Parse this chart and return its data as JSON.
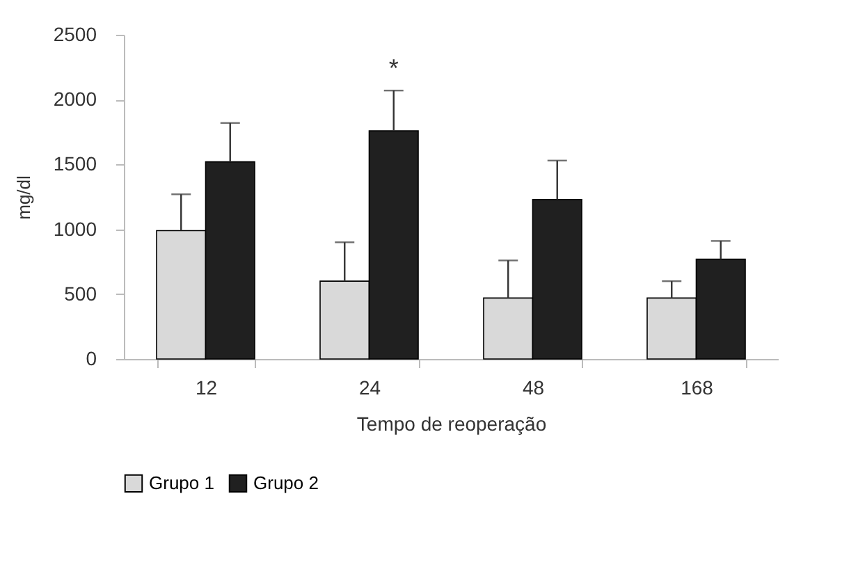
{
  "chart_data": {
    "type": "bar",
    "xlabel": "Tempo de reoperação",
    "ylabel": "mg/dl",
    "categories": [
      "12",
      "24",
      "48",
      "168"
    ],
    "series": [
      {
        "name": "Grupo 1",
        "color": "#d9d9d9",
        "values": [
          990,
          600,
          470,
          470
        ],
        "errors": [
          [
            990,
            1270
          ],
          [
            600,
            900
          ],
          [
            470,
            760
          ],
          [
            470,
            600
          ]
        ]
      },
      {
        "name": "Grupo 2",
        "color": "#202020",
        "values": [
          1520,
          1760,
          1230,
          770
        ],
        "errors": [
          [
            1520,
            1820
          ],
          [
            1760,
            2070
          ],
          [
            1230,
            1530
          ],
          [
            770,
            910
          ]
        ]
      }
    ],
    "ylim": [
      0,
      2500
    ],
    "yticks": [
      0,
      500,
      1000,
      1500,
      2000,
      2500
    ],
    "grid": false,
    "legend": "bottom",
    "annotations": [
      "*"
    ]
  }
}
